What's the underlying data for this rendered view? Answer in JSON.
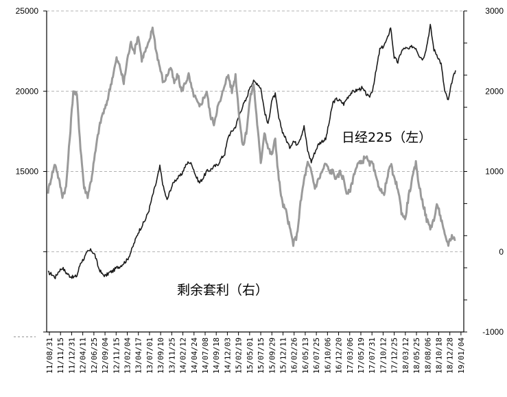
{
  "chart_data": {
    "type": "line",
    "title": "",
    "xlabel": "",
    "ylabel": "",
    "y_left": {
      "min": 5000,
      "max": 25000,
      "ticks": [
        15000,
        20000,
        25000
      ],
      "grid": [
        10000,
        15000,
        20000,
        25000
      ]
    },
    "y_right": {
      "min": -1000,
      "max": 3000,
      "ticks": [
        -1000,
        0,
        1000,
        2000,
        3000
      ]
    },
    "x_tick_labels": [
      "11/08/31",
      "11/11/15",
      "11/12/31",
      "12/04/11",
      "12/06/25",
      "12/09/04",
      "12/11/15",
      "13/02/04",
      "13/04/17",
      "13/07/01",
      "13/09/10",
      "13/11/25",
      "14/02/12",
      "14/04/24",
      "14/07/08",
      "14/09/18",
      "14/12/03",
      "15/02/19",
      "15/05/01",
      "15/07/15",
      "15/09/29",
      "15/12/11",
      "16/02/26",
      "16/05/13",
      "16/07/25",
      "16/10/06",
      "16/12/20",
      "17/03/06",
      "17/05/19",
      "17/07/31",
      "17/10/12",
      "17/12/25",
      "18/03/12",
      "18/05/25",
      "18/08/06",
      "18/10/18",
      "18/12/28",
      "19/01/04"
    ],
    "series": [
      {
        "name": "日经225（左）",
        "axis": "left",
        "color": "#1a1a1a",
        "values": [
          8700,
          8600,
          8400,
          8800,
          9000,
          8700,
          8500,
          8400,
          8500,
          9300,
          9600,
          10000,
          10100,
          9800,
          9000,
          8600,
          8500,
          8700,
          8800,
          9000,
          9100,
          9300,
          9500,
          10000,
          10600,
          11200,
          11600,
          12000,
          12600,
          13500,
          14300,
          15300,
          14000,
          13200,
          13900,
          14400,
          14600,
          14800,
          15300,
          15600,
          15400,
          14700,
          14300,
          14600,
          15000,
          15100,
          15300,
          15400,
          15800,
          16100,
          17200,
          17500,
          17800,
          18500,
          19100,
          19500,
          20300,
          20600,
          20500,
          20200,
          18800,
          17900,
          19400,
          19800,
          18300,
          17500,
          17000,
          16500,
          16900,
          16700,
          17100,
          17800,
          16300,
          15600,
          16200,
          16700,
          16900,
          17000,
          18100,
          19300,
          19500,
          19400,
          19200,
          19600,
          19900,
          20000,
          20100,
          20200,
          19900,
          19600,
          20100,
          21300,
          22600,
          22800,
          23200,
          24000,
          22100,
          21800,
          22500,
          22700,
          22600,
          22800,
          22700,
          22200,
          22000,
          22800,
          24100,
          22600,
          22200,
          21700,
          20000,
          19400,
          20600,
          21300
        ]
      },
      {
        "name": "剩余套利（右）",
        "axis": "right",
        "color": "#9a9a9a",
        "values": [
          750,
          950,
          1100,
          900,
          700,
          800,
          1400,
          2000,
          1950,
          1300,
          800,
          700,
          900,
          1200,
          1500,
          1700,
          1800,
          2000,
          2200,
          2400,
          2300,
          2100,
          2400,
          2600,
          2500,
          2700,
          2400,
          2500,
          2600,
          2800,
          2500,
          2300,
          2100,
          2200,
          2300,
          2100,
          2200,
          2000,
          2100,
          2200,
          2000,
          1900,
          1800,
          1900,
          2000,
          1700,
          1600,
          1800,
          1900,
          2100,
          2200,
          2000,
          2200,
          1700,
          1300,
          1500,
          1900,
          2100,
          1600,
          1100,
          1500,
          1300,
          1200,
          1400,
          900,
          600,
          500,
          300,
          100,
          200,
          600,
          900,
          1100,
          1000,
          800,
          900,
          1000,
          1100,
          1000,
          1000,
          900,
          1000,
          900,
          700,
          800,
          1000,
          1100,
          1100,
          1200,
          1100,
          1100,
          900,
          800,
          700,
          900,
          1100,
          900,
          800,
          500,
          400,
          700,
          900,
          1100,
          800,
          600,
          400,
          300,
          400,
          600,
          400,
          200,
          100,
          200,
          150
        ]
      }
    ],
    "annotations": [
      {
        "text": "日经225（左）",
        "series": 0
      },
      {
        "text": "剩余套利（右）",
        "series": 1
      }
    ],
    "grid": true,
    "legend": "none"
  }
}
